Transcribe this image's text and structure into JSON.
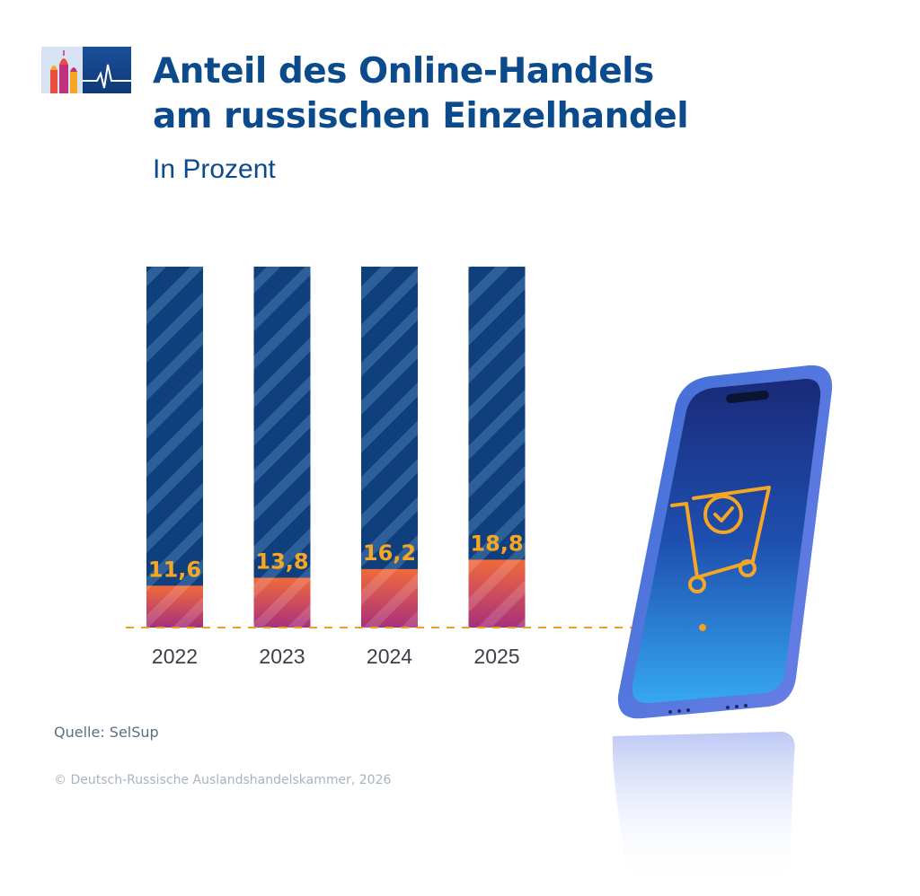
{
  "header": {
    "title_line1": "Anteil des Online-Handels",
    "title_line2": "am russischen Einzelhandel",
    "subtitle": "In Prozent"
  },
  "footer": {
    "source": "Quelle: SelSup",
    "copyright": "© Deutsch-Russische Auslandshandelskammer, 2026"
  },
  "colors": {
    "title": "#0b4a8b",
    "bar_background": "#0f3f7d",
    "bar_value_top": "#f06a3a",
    "bar_value_bottom": "#a8307c",
    "value_label": "#f5a623",
    "baseline": "#f0a020"
  },
  "icons": [
    "logo-icon",
    "smartphone-icon",
    "shopping-cart-icon"
  ],
  "chart_data": {
    "type": "bar",
    "categories": [
      "2022",
      "2023",
      "2024",
      "2025"
    ],
    "values": [
      11.6,
      13.8,
      16.2,
      18.8
    ],
    "value_labels": [
      "11,6",
      "13,8",
      "16,2",
      "18,8"
    ],
    "ylim": [
      0,
      100
    ],
    "title": "Anteil des Online-Handels am russischen Einzelhandel",
    "subtitle": "In Prozent",
    "xlabel": "",
    "ylabel": "",
    "grid": false,
    "legend": "none"
  }
}
